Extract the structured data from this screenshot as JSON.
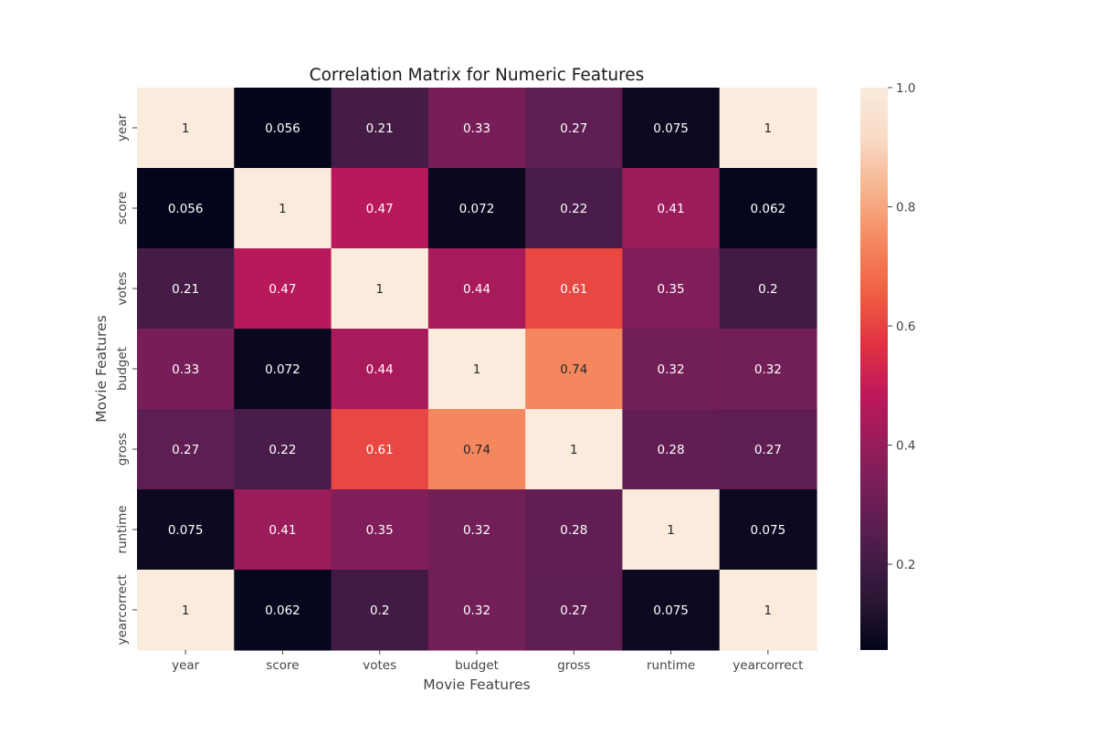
{
  "chart_data": {
    "type": "heatmap",
    "title": "Correlation Matrix for Numeric Features",
    "xlabel": "Movie Features",
    "ylabel": "Movie Features",
    "x_categories": [
      "year",
      "score",
      "votes",
      "budget",
      "gross",
      "runtime",
      "yearcorrect"
    ],
    "y_categories": [
      "year",
      "score",
      "votes",
      "budget",
      "gross",
      "runtime",
      "yearcorrect"
    ],
    "values": [
      [
        1,
        0.056,
        0.21,
        0.33,
        0.27,
        0.075,
        1
      ],
      [
        0.056,
        1,
        0.47,
        0.072,
        0.22,
        0.41,
        0.062
      ],
      [
        0.21,
        0.47,
        1,
        0.44,
        0.61,
        0.35,
        0.2
      ],
      [
        0.33,
        0.072,
        0.44,
        1,
        0.74,
        0.32,
        0.32
      ],
      [
        0.27,
        0.22,
        0.61,
        0.74,
        1,
        0.28,
        0.27
      ],
      [
        0.075,
        0.41,
        0.35,
        0.32,
        0.28,
        1,
        0.075
      ],
      [
        1,
        0.062,
        0.2,
        0.32,
        0.27,
        0.075,
        1
      ]
    ],
    "labels": [
      [
        "1",
        "0.056",
        "0.21",
        "0.33",
        "0.27",
        "0.075",
        "1"
      ],
      [
        "0.056",
        "1",
        "0.47",
        "0.072",
        "0.22",
        "0.41",
        "0.062"
      ],
      [
        "0.21",
        "0.47",
        "1",
        "0.44",
        "0.61",
        "0.35",
        "0.2"
      ],
      [
        "0.33",
        "0.072",
        "0.44",
        "1",
        "0.74",
        "0.32",
        "0.32"
      ],
      [
        "0.27",
        "0.22",
        "0.61",
        "0.74",
        "1",
        "0.28",
        "0.27"
      ],
      [
        "0.075",
        "0.41",
        "0.35",
        "0.32",
        "0.28",
        "1",
        "0.075"
      ],
      [
        "1",
        "0.062",
        "0.2",
        "0.32",
        "0.27",
        "0.075",
        "1"
      ]
    ],
    "colorbar": {
      "min": 0.056,
      "max": 1.0,
      "ticks": [
        0.2,
        0.4,
        0.6,
        0.8,
        1.0
      ],
      "tick_labels": [
        "0.2",
        "0.4",
        "0.6",
        "0.8",
        "1.0"
      ],
      "colormap": "rocket",
      "colormap_stops": [
        "#03051a",
        "#2b1635",
        "#4c1d4b",
        "#701f57",
        "#961c5b",
        "#bf185a",
        "#e13342",
        "#f06043",
        "#f58860",
        "#f6b48e",
        "#f9dac4",
        "#faebdd"
      ]
    },
    "legend": "colorbar-right",
    "grid": false
  }
}
